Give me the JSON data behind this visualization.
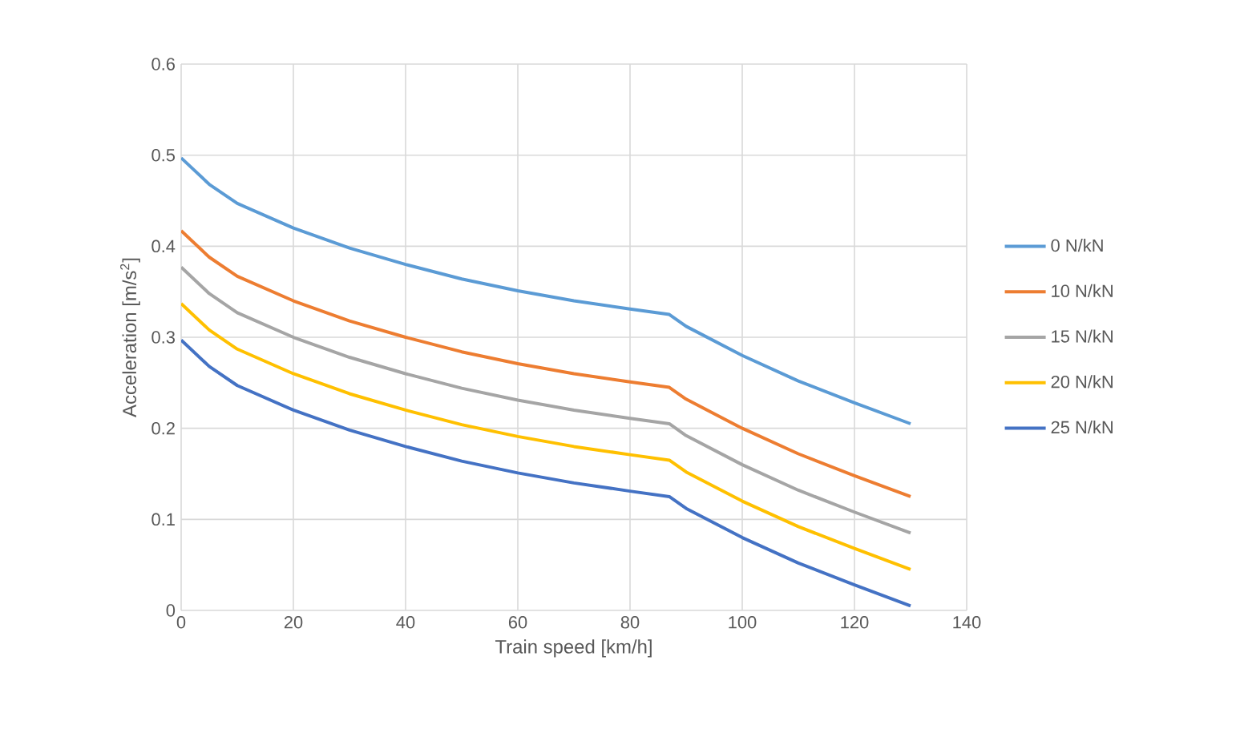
{
  "chart_data": {
    "type": "line",
    "xlabel": "Train speed [km/h]",
    "ylabel": "Acceleration [m/s$^{2}$]",
    "x": [
      0,
      5,
      10,
      20,
      30,
      40,
      50,
      60,
      70,
      80,
      87,
      90,
      100,
      110,
      120,
      130
    ],
    "series": [
      {
        "name": "0 N/kN",
        "color": "#5b9bd5",
        "values": [
          0.497,
          0.468,
          0.447,
          0.42,
          0.398,
          0.38,
          0.364,
          0.351,
          0.34,
          0.331,
          0.325,
          0.312,
          0.28,
          0.252,
          0.228,
          0.205
        ]
      },
      {
        "name": "10 N/kN",
        "color": "#ed7d31",
        "values": [
          0.417,
          0.388,
          0.367,
          0.34,
          0.318,
          0.3,
          0.284,
          0.271,
          0.26,
          0.251,
          0.245,
          0.232,
          0.2,
          0.172,
          0.148,
          0.125
        ]
      },
      {
        "name": "15 N/kN",
        "color": "#a5a5a5",
        "values": [
          0.377,
          0.348,
          0.327,
          0.3,
          0.278,
          0.26,
          0.244,
          0.231,
          0.22,
          0.211,
          0.205,
          0.192,
          0.16,
          0.132,
          0.108,
          0.085
        ]
      },
      {
        "name": "20 N/kN",
        "color": "#ffc000",
        "values": [
          0.337,
          0.308,
          0.287,
          0.26,
          0.238,
          0.22,
          0.204,
          0.191,
          0.18,
          0.171,
          0.165,
          0.152,
          0.12,
          0.092,
          0.068,
          0.045
        ]
      },
      {
        "name": "25 N/kN",
        "color": "#4472c4",
        "values": [
          0.297,
          0.268,
          0.247,
          0.22,
          0.198,
          0.18,
          0.164,
          0.151,
          0.14,
          0.131,
          0.125,
          0.112,
          0.08,
          0.052,
          0.028,
          0.005
        ]
      }
    ],
    "xlim": [
      0,
      140
    ],
    "xticks": [
      0,
      20,
      40,
      60,
      80,
      100,
      120,
      140
    ],
    "ylim": [
      0,
      0.6
    ],
    "yticks": [
      0,
      0.1,
      0.2,
      0.3,
      0.4,
      0.5,
      0.6
    ],
    "grid": true,
    "legend": "right",
    "marker": "none",
    "line_style": "solid"
  }
}
